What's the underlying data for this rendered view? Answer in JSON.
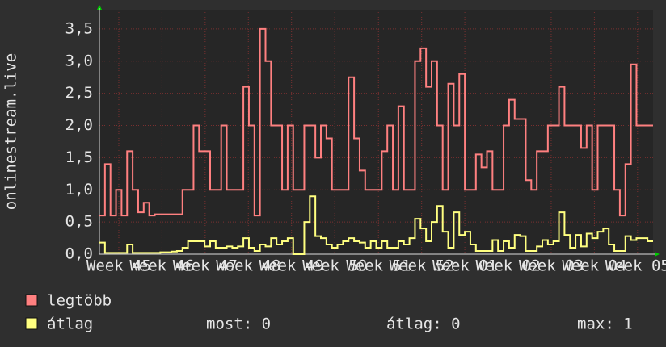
{
  "chart_data": {
    "type": "line",
    "y_label": "onlinestream.live",
    "ylim": [
      0,
      3.8
    ],
    "yticks": [
      {
        "value": 0,
        "label": "0,0"
      },
      {
        "value": 0.5,
        "label": "0,5"
      },
      {
        "value": 1,
        "label": "1,0"
      },
      {
        "value": 1.5,
        "label": "1,5"
      },
      {
        "value": 2,
        "label": "2,0"
      },
      {
        "value": 2.5,
        "label": "2,5"
      },
      {
        "value": 3,
        "label": "3,0"
      },
      {
        "value": 3.5,
        "label": "3,5"
      }
    ],
    "xlim": [
      -0.5,
      99.5
    ],
    "xticks": [
      {
        "value": 3.0,
        "label": "Week 45"
      },
      {
        "value": 10.8,
        "label": "Week 46"
      },
      {
        "value": 18.6,
        "label": "Week 47"
      },
      {
        "value": 26.4,
        "label": "Week 48"
      },
      {
        "value": 34.2,
        "label": "Week 49"
      },
      {
        "value": 42.0,
        "label": "Week 50"
      },
      {
        "value": 49.9,
        "label": "Week 51"
      },
      {
        "value": 57.7,
        "label": "Week 52"
      },
      {
        "value": 65.5,
        "label": "Week 01"
      },
      {
        "value": 73.3,
        "label": "Week 02"
      },
      {
        "value": 81.1,
        "label": "Week 03"
      },
      {
        "value": 88.9,
        "label": "Week 04"
      },
      {
        "value": 96.7,
        "label": "Week 05"
      }
    ],
    "grid": true,
    "series": [
      {
        "name": "legtöbb",
        "color": "#ff8080",
        "values": [
          0.6,
          1.4,
          0.6,
          1.0,
          0.6,
          1.6,
          1.0,
          0.65,
          0.8,
          0.6,
          0.62,
          0.62,
          0.62,
          0.62,
          0.62,
          1.0,
          1.0,
          2.0,
          1.6,
          1.6,
          1.0,
          1.0,
          2.0,
          1.0,
          1.0,
          1.0,
          2.6,
          2.0,
          0.6,
          3.5,
          3.0,
          2.0,
          2.0,
          1.0,
          2.0,
          1.0,
          1.0,
          2.0,
          2.0,
          1.5,
          2.0,
          1.8,
          1.0,
          1.0,
          1.0,
          2.75,
          1.8,
          1.3,
          1.0,
          1.0,
          1.0,
          1.6,
          2.0,
          1.0,
          2.3,
          1.0,
          1.0,
          3.0,
          3.2,
          2.6,
          3.0,
          2.0,
          1.0,
          2.65,
          2.0,
          2.8,
          1.0,
          1.0,
          1.55,
          1.35,
          1.6,
          1.0,
          1.0,
          2.0,
          2.4,
          2.1,
          2.1,
          1.15,
          1.0,
          1.6,
          1.6,
          2.0,
          2.0,
          2.6,
          2.0,
          2.0,
          2.0,
          1.65,
          2.0,
          1.0,
          2.0,
          2.0,
          2.0,
          1.0,
          0.6,
          1.4,
          2.95,
          2.0,
          2.0,
          2.0
        ]
      },
      {
        "name": "átlag",
        "color": "#ffff80",
        "values": [
          0.18,
          0.02,
          0.02,
          0.02,
          0.02,
          0.15,
          0.02,
          0.02,
          0.02,
          0.02,
          0.02,
          0.03,
          0.03,
          0.04,
          0.05,
          0.1,
          0.2,
          0.2,
          0.2,
          0.12,
          0.2,
          0.1,
          0.1,
          0.12,
          0.1,
          0.12,
          0.25,
          0.1,
          0.05,
          0.15,
          0.12,
          0.25,
          0.15,
          0.2,
          0.25,
          0.0,
          0.0,
          0.5,
          0.9,
          0.28,
          0.25,
          0.15,
          0.1,
          0.15,
          0.2,
          0.25,
          0.2,
          0.18,
          0.1,
          0.2,
          0.1,
          0.2,
          0.1,
          0.1,
          0.2,
          0.15,
          0.25,
          0.55,
          0.4,
          0.2,
          0.5,
          0.75,
          0.35,
          0.1,
          0.65,
          0.3,
          0.35,
          0.15,
          0.05,
          0.05,
          0.05,
          0.22,
          0.05,
          0.2,
          0.1,
          0.3,
          0.28,
          0.05,
          0.05,
          0.12,
          0.22,
          0.15,
          0.2,
          0.65,
          0.3,
          0.1,
          0.3,
          0.12,
          0.32,
          0.25,
          0.35,
          0.4,
          0.15,
          0.05,
          0.05,
          0.28,
          0.22,
          0.25,
          0.25,
          0.2
        ]
      }
    ],
    "stats": [
      "most: 0",
      "átlag: 0",
      "max: 1"
    ]
  }
}
